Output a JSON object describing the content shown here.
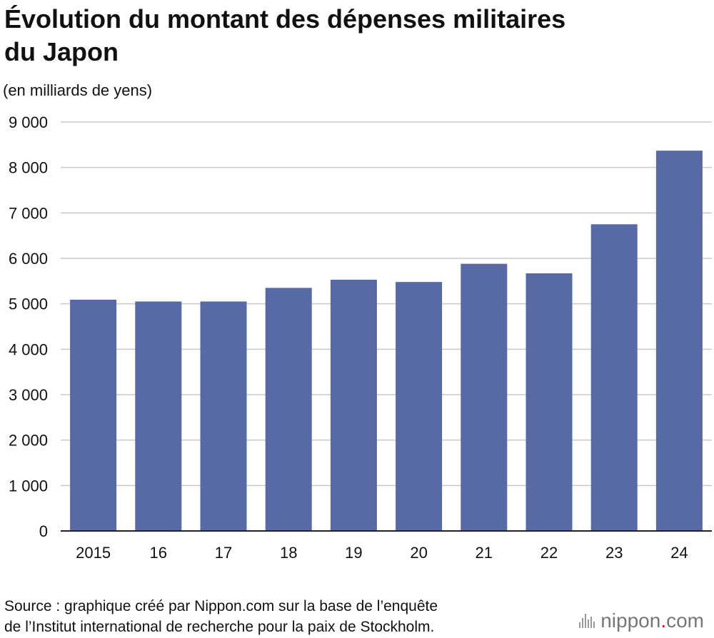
{
  "header": {
    "title_line1": "Évolution du montant des dépenses militaires",
    "title_line2": "du Japon",
    "unit": "(en milliards de yens)"
  },
  "chart_data": {
    "type": "bar",
    "title": "Évolution du montant des dépenses militaires du Japon",
    "ylabel": "(en milliards de yens)",
    "xlabel": "",
    "categories": [
      "2015",
      "16",
      "17",
      "18",
      "19",
      "20",
      "21",
      "22",
      "23",
      "24"
    ],
    "values": [
      5090,
      5050,
      5050,
      5350,
      5530,
      5480,
      5880,
      5670,
      6750,
      8370
    ],
    "ylim": [
      0,
      9000
    ],
    "yticks": [
      0,
      1000,
      2000,
      3000,
      4000,
      5000,
      6000,
      7000,
      8000,
      9000
    ],
    "ytick_labels": [
      "0",
      "1 000",
      "2 000",
      "3 000",
      "4 000",
      "5 000",
      "6 000",
      "7 000",
      "8 000",
      "9 000"
    ],
    "grid": true,
    "legend": "none",
    "bar_color": "#576aa5"
  },
  "footer": {
    "source_line1": "Source : graphique créé par Nippon.com sur la base de l’enquête",
    "source_line2": "de l’Institut international de recherche pour la paix de Stockholm.",
    "brand_name": "nippon",
    "brand_dot": ".",
    "brand_tld": "com"
  }
}
